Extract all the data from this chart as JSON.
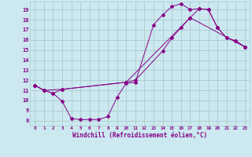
{
  "xlabel": "Windchill (Refroidissement éolien,°C)",
  "bg_color": "#cce8f0",
  "grid_color": "#aacccc",
  "line_color": "#880088",
  "xlim": [
    -0.5,
    23.5
  ],
  "ylim": [
    7.5,
    19.8
  ],
  "yticks": [
    8,
    9,
    10,
    11,
    12,
    13,
    14,
    15,
    16,
    17,
    18,
    19
  ],
  "xticks": [
    0,
    1,
    2,
    3,
    4,
    5,
    6,
    7,
    8,
    9,
    10,
    11,
    12,
    13,
    14,
    15,
    16,
    17,
    18,
    19,
    20,
    21,
    22,
    23
  ],
  "series1_x": [
    0,
    1,
    2,
    3,
    4,
    5,
    6,
    7,
    8,
    9,
    10,
    11,
    13,
    14,
    15,
    16,
    17,
    18,
    19,
    20,
    21,
    22,
    23
  ],
  "series1_y": [
    11.5,
    11.0,
    10.7,
    9.9,
    8.2,
    8.1,
    8.1,
    8.1,
    8.4,
    10.3,
    11.7,
    11.8,
    17.5,
    18.5,
    19.3,
    19.6,
    19.0,
    19.1,
    19.0,
    17.2,
    16.2,
    15.9,
    15.3
  ],
  "series2_x": [
    0,
    1,
    2,
    3,
    10,
    11,
    14,
    15,
    16,
    17,
    18,
    19,
    20,
    21,
    22,
    23
  ],
  "series2_y": [
    11.5,
    11.0,
    10.7,
    11.1,
    11.8,
    12.0,
    14.9,
    16.2,
    17.2,
    18.2,
    19.1,
    19.0,
    17.2,
    16.2,
    15.9,
    15.3
  ],
  "series3_x": [
    0,
    1,
    3,
    10,
    17,
    23
  ],
  "series3_y": [
    11.5,
    11.0,
    11.1,
    11.8,
    18.2,
    15.3
  ]
}
